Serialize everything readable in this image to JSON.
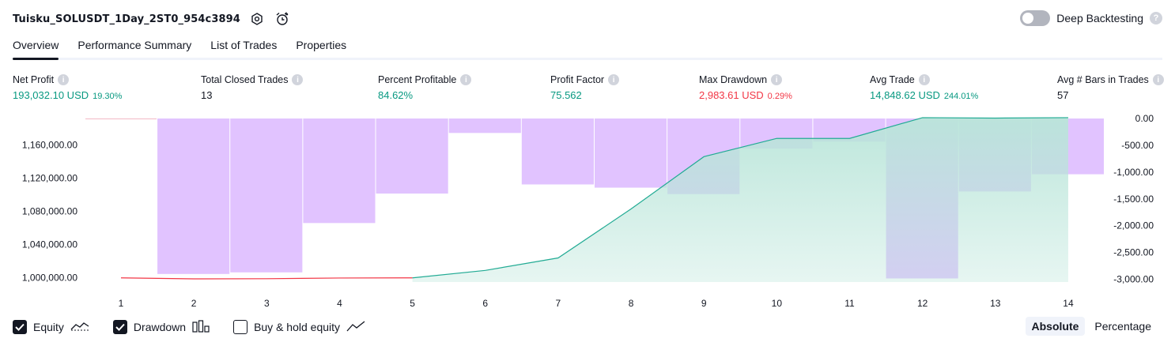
{
  "header": {
    "strategy_name": "Tuisku_SOLUSDT_1Day_2ST0_954c3894",
    "icons": [
      "settings-icon",
      "add-alert-icon"
    ]
  },
  "deep_backtesting": {
    "label": "Deep Backtesting",
    "enabled": false
  },
  "tabs": [
    {
      "label": "Overview",
      "active": true
    },
    {
      "label": "Performance Summary",
      "active": false
    },
    {
      "label": "List of Trades",
      "active": false
    },
    {
      "label": "Properties",
      "active": false
    }
  ],
  "metrics": [
    {
      "label": "Net Profit",
      "value": "193,032.10 USD",
      "sub": "19.30%",
      "tone": "pos"
    },
    {
      "label": "Total Closed Trades",
      "value": "13",
      "sub": "",
      "tone": "neutral"
    },
    {
      "label": "Percent Profitable",
      "value": "84.62%",
      "sub": "",
      "tone": "pos"
    },
    {
      "label": "Profit Factor",
      "value": "75.562",
      "sub": "",
      "tone": "pos"
    },
    {
      "label": "Max Drawdown",
      "value": "2,983.61 USD",
      "sub": "0.29%",
      "tone": "neg"
    },
    {
      "label": "Avg Trade",
      "value": "14,848.62 USD",
      "sub": "244.01%",
      "tone": "pos"
    },
    {
      "label": "Avg # Bars in Trades",
      "value": "57",
      "sub": "",
      "tone": "neutral"
    }
  ],
  "colors": {
    "equity_line": "#22ab94",
    "equity_fill": "#b9e5d9",
    "equity_negative_line": "#f23645",
    "drawdown_bar": "#e1c3ff",
    "positive": "#089981",
    "negative": "#f23645",
    "text": "#131722",
    "axis_text": "#131722"
  },
  "chart_data": {
    "type": "line",
    "x": [
      1,
      2,
      3,
      4,
      5,
      6,
      7,
      8,
      9,
      10,
      11,
      12,
      13,
      14
    ],
    "left_axis": {
      "ticks": [
        "1,160,000.00",
        "1,120,000.00",
        "1,080,000.00",
        "1,040,000.00",
        "1,000,000.00"
      ],
      "tick_values": [
        1160000,
        1120000,
        1080000,
        1040000,
        1000000
      ],
      "range": [
        995000,
        1192000
      ]
    },
    "right_axis": {
      "ticks": [
        "0.00",
        "-500.00",
        "-1,000.00",
        "-1,500.00",
        "-2,000.00",
        "-2,500.00",
        "-3,000.00"
      ],
      "tick_values": [
        0,
        -500,
        -1000,
        -1500,
        -2000,
        -2500,
        -3000
      ],
      "range": [
        -3050,
        0
      ]
    },
    "series": [
      {
        "name": "Equity",
        "axis": "left",
        "values": [
          1000000,
          998800,
          999000,
          999800,
          1000000,
          1009000,
          1024000,
          1083000,
          1146000,
          1168000,
          1168000,
          1193000,
          1192500,
          1193000
        ]
      },
      {
        "name": "Drawdown",
        "axis": "right",
        "values": [
          0,
          -2900,
          -2870,
          -1950,
          -1400,
          -270,
          -1230,
          -1290,
          -1410,
          -560,
          -430,
          -2983,
          -1360,
          -1040
        ]
      }
    ]
  },
  "legend": [
    {
      "label": "Equity",
      "checked": true,
      "icon": "equity-line-icon"
    },
    {
      "label": "Drawdown",
      "checked": true,
      "icon": "drawdown-bars-icon"
    },
    {
      "label": "Buy & hold equity",
      "checked": false,
      "icon": "buy-hold-line-icon"
    }
  ],
  "mode": {
    "options": [
      "Absolute",
      "Percentage"
    ],
    "selected": "Absolute"
  }
}
